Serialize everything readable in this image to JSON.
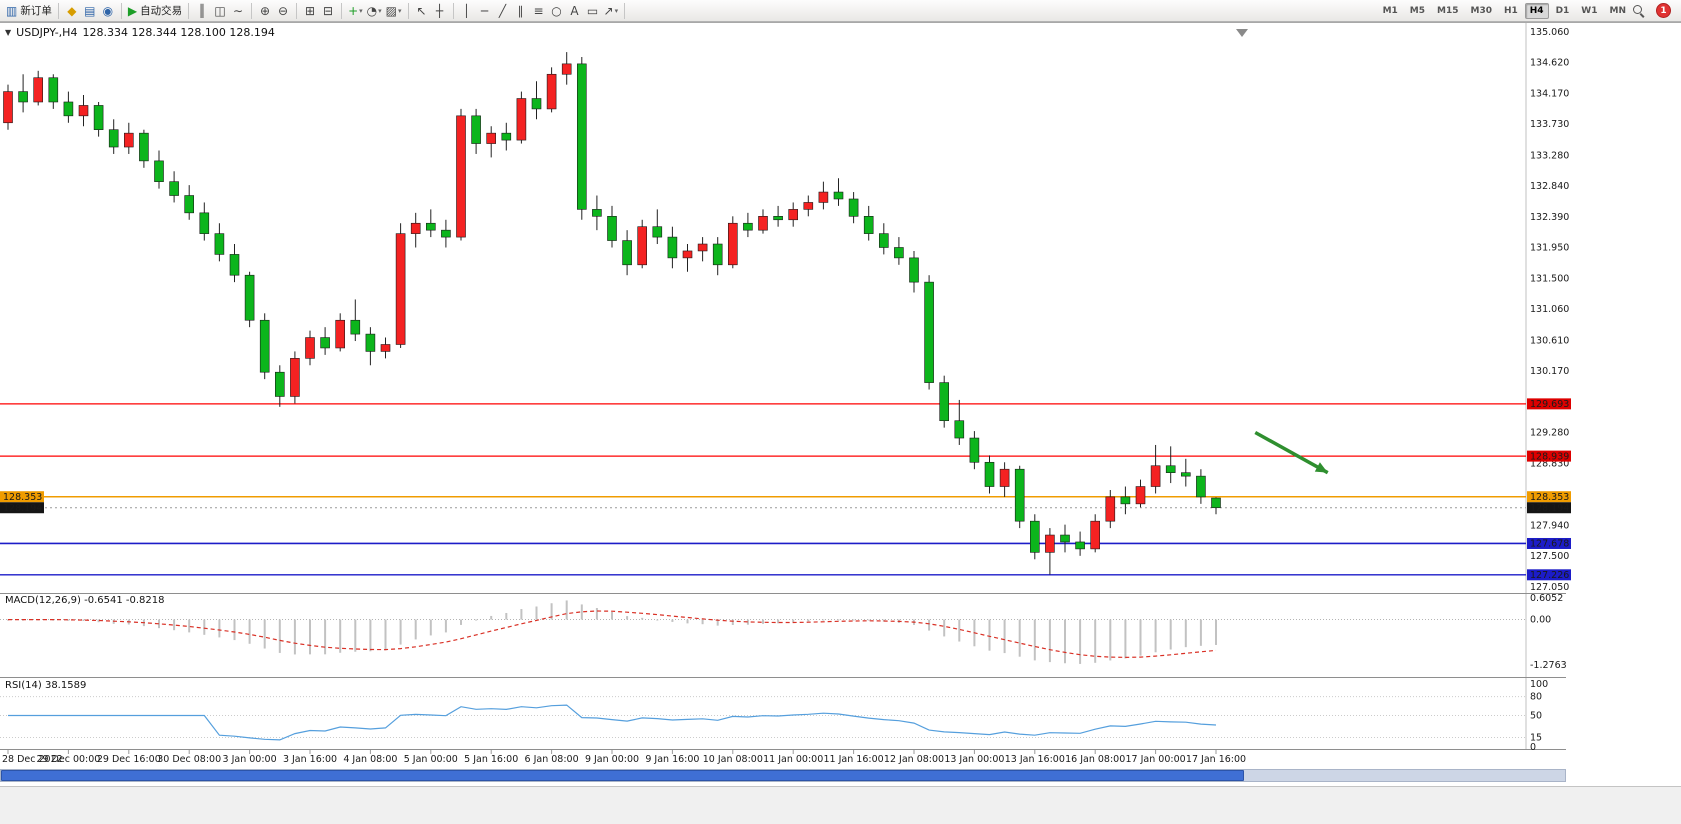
{
  "toolbar": {
    "new_order": {
      "label": "新订单"
    },
    "autotrading": {
      "label": "自动交易"
    },
    "icon_groups": [
      {
        "items": [
          {
            "name": "new-order-icon",
            "glyph": "▥",
            "color": "#2e64a8",
            "label": "新订单"
          }
        ]
      },
      {
        "items": [
          {
            "name": "price-list-icon",
            "glyph": "◆",
            "color": "#d79d00"
          },
          {
            "name": "market-watch-icon",
            "glyph": "▤",
            "color": "#2e64a8"
          },
          {
            "name": "refresh-icon",
            "glyph": "◉",
            "color": "#2e64a8"
          }
        ]
      },
      {
        "items": [
          {
            "name": "autotrading-play-icon",
            "glyph": "▶",
            "color": "#1d9e27",
            "label": "自动交易"
          }
        ]
      },
      {
        "items": [
          {
            "name": "bar-chart-icon",
            "glyph": "║",
            "color": "#444444"
          },
          {
            "name": "candlestick-chart-icon",
            "glyph": "◫",
            "color": "#444444"
          },
          {
            "name": "line-chart-icon",
            "glyph": "∼",
            "color": "#444444"
          }
        ]
      },
      {
        "items": [
          {
            "name": "zoom-in-icon",
            "glyph": "⊕",
            "color": "#444444"
          },
          {
            "name": "zoom-out-icon",
            "glyph": "⊖",
            "color": "#444444"
          }
        ]
      },
      {
        "items": [
          {
            "name": "tile-windows-icon",
            "glyph": "⊞",
            "color": "#444444"
          },
          {
            "name": "cascade-windows-icon",
            "glyph": "⊟",
            "color": "#444444"
          }
        ]
      },
      {
        "items": [
          {
            "name": "indicators-icon",
            "glyph": "+",
            "color": "#1d9e27",
            "dropdown": true
          },
          {
            "name": "periods-icon",
            "glyph": "◔",
            "color": "#444444",
            "dropdown": true
          },
          {
            "name": "templates-icon",
            "glyph": "▨",
            "color": "#444444",
            "dropdown": true
          }
        ]
      },
      {
        "items": [
          {
            "name": "cursor-icon",
            "glyph": "↖",
            "color": "#444444"
          },
          {
            "name": "crosshair-icon",
            "glyph": "┼",
            "color": "#444444"
          }
        ]
      },
      {
        "items": [
          {
            "name": "vertical-line-icon",
            "glyph": "│",
            "color": "#444444"
          },
          {
            "name": "horizontal-line-icon",
            "glyph": "─",
            "color": "#444444"
          },
          {
            "name": "trendline-icon",
            "glyph": "╱",
            "color": "#444444"
          },
          {
            "name": "channel-icon",
            "glyph": "∥",
            "color": "#444444"
          },
          {
            "name": "fibonacci-icon",
            "glyph": "≡",
            "color": "#444444"
          },
          {
            "name": "shapes-icon",
            "glyph": "○",
            "color": "#444444"
          },
          {
            "name": "text-icon",
            "glyph": "A",
            "color": "#444444"
          },
          {
            "name": "text-label-icon",
            "glyph": "▭",
            "color": "#444444"
          },
          {
            "name": "arrows-tool-icon",
            "glyph": "↗",
            "color": "#444444",
            "dropdown": true
          }
        ]
      }
    ],
    "timeframes": {
      "options": [
        "M1",
        "M5",
        "M15",
        "M30",
        "H1",
        "H4",
        "D1",
        "W1",
        "MN"
      ],
      "active": "H4"
    },
    "notification": {
      "count": "1"
    }
  },
  "chart_header": {
    "collapse_glyph": "▼",
    "symbol_period": "USDJPY-,H4",
    "ohlc": "128.334 128.344 128.100 128.194"
  },
  "indicator_labels": {
    "macd": "MACD(12,26,9) -0.6541 -0.8218",
    "rsi": "RSI(14) 38.1589"
  },
  "chart_data": {
    "type": "candlestick",
    "symbol": "USDJPY-",
    "timeframe": "H4",
    "ohlc_header": {
      "open": 128.334,
      "high": 128.344,
      "low": 128.1,
      "close": 128.194
    },
    "price_range": [
      127.05,
      135.06
    ],
    "price_axis_labels": [
      "135.060",
      "134.620",
      "134.170",
      "133.730",
      "133.280",
      "132.840",
      "132.390",
      "131.950",
      "131.500",
      "131.060",
      "130.610",
      "130.170",
      "129.280",
      "128.830",
      "127.940",
      "127.500",
      "127.050"
    ],
    "bull_color": "#f42222",
    "bear_color": "#0cb51c",
    "candles": [
      [
        133.75,
        134.3,
        133.65,
        134.2
      ],
      [
        134.2,
        134.45,
        133.9,
        134.05
      ],
      [
        134.05,
        134.5,
        134.0,
        134.4
      ],
      [
        134.4,
        134.45,
        133.95,
        134.05
      ],
      [
        134.05,
        134.2,
        133.75,
        133.85
      ],
      [
        133.85,
        134.15,
        133.7,
        134.0
      ],
      [
        134.0,
        134.05,
        133.55,
        133.65
      ],
      [
        133.65,
        133.8,
        133.3,
        133.4
      ],
      [
        133.4,
        133.75,
        133.3,
        133.6
      ],
      [
        133.6,
        133.65,
        133.1,
        133.2
      ],
      [
        133.2,
        133.35,
        132.8,
        132.9
      ],
      [
        132.9,
        133.05,
        132.6,
        132.7
      ],
      [
        132.7,
        132.85,
        132.35,
        132.45
      ],
      [
        132.45,
        132.6,
        132.05,
        132.15
      ],
      [
        132.15,
        132.3,
        131.75,
        131.85
      ],
      [
        131.85,
        132.0,
        131.45,
        131.55
      ],
      [
        131.55,
        131.6,
        130.8,
        130.9
      ],
      [
        130.9,
        131.0,
        130.05,
        130.15
      ],
      [
        130.15,
        130.25,
        129.65,
        129.8
      ],
      [
        129.8,
        130.45,
        129.7,
        130.35
      ],
      [
        130.35,
        130.75,
        130.25,
        130.65
      ],
      [
        130.65,
        130.8,
        130.4,
        130.5
      ],
      [
        130.5,
        131.0,
        130.45,
        130.9
      ],
      [
        130.9,
        131.2,
        130.6,
        130.7
      ],
      [
        130.7,
        130.8,
        130.25,
        130.45
      ],
      [
        130.45,
        130.65,
        130.35,
        130.55
      ],
      [
        130.55,
        132.3,
        130.5,
        132.15
      ],
      [
        132.15,
        132.45,
        131.95,
        132.3
      ],
      [
        132.3,
        132.5,
        132.1,
        132.2
      ],
      [
        132.2,
        132.35,
        131.95,
        132.1
      ],
      [
        132.1,
        133.95,
        132.05,
        133.85
      ],
      [
        133.85,
        133.95,
        133.3,
        133.45
      ],
      [
        133.45,
        133.7,
        133.25,
        133.6
      ],
      [
        133.6,
        133.75,
        133.35,
        133.5
      ],
      [
        133.5,
        134.2,
        133.45,
        134.1
      ],
      [
        134.1,
        134.35,
        133.8,
        133.95
      ],
      [
        133.95,
        134.55,
        133.9,
        134.45
      ],
      [
        134.45,
        134.77,
        134.3,
        134.6
      ],
      [
        134.6,
        134.7,
        132.35,
        132.5
      ],
      [
        132.5,
        132.7,
        132.2,
        132.4
      ],
      [
        132.4,
        132.55,
        131.95,
        132.05
      ],
      [
        132.05,
        132.2,
        131.55,
        131.7
      ],
      [
        131.7,
        132.35,
        131.65,
        132.25
      ],
      [
        132.25,
        132.5,
        132.0,
        132.1
      ],
      [
        132.1,
        132.25,
        131.65,
        131.8
      ],
      [
        131.8,
        132.0,
        131.6,
        131.9
      ],
      [
        131.9,
        132.1,
        131.75,
        132.0
      ],
      [
        132.0,
        132.1,
        131.55,
        131.7
      ],
      [
        131.7,
        132.4,
        131.65,
        132.3
      ],
      [
        132.3,
        132.45,
        132.1,
        132.2
      ],
      [
        132.2,
        132.5,
        132.15,
        132.4
      ],
      [
        132.4,
        132.55,
        132.25,
        132.35
      ],
      [
        132.35,
        132.6,
        132.25,
        132.5
      ],
      [
        132.5,
        132.7,
        132.4,
        132.6
      ],
      [
        132.6,
        132.9,
        132.5,
        132.75
      ],
      [
        132.75,
        132.95,
        132.55,
        132.65
      ],
      [
        132.65,
        132.75,
        132.3,
        132.4
      ],
      [
        132.4,
        132.55,
        132.05,
        132.15
      ],
      [
        132.15,
        132.3,
        131.85,
        131.95
      ],
      [
        131.95,
        132.1,
        131.7,
        131.8
      ],
      [
        131.8,
        131.9,
        131.3,
        131.45
      ],
      [
        131.45,
        131.55,
        129.9,
        130.0
      ],
      [
        130.0,
        130.1,
        129.35,
        129.45
      ],
      [
        129.45,
        129.75,
        129.1,
        129.2
      ],
      [
        129.2,
        129.3,
        128.75,
        128.85
      ],
      [
        128.85,
        128.95,
        128.4,
        128.5
      ],
      [
        128.5,
        128.85,
        128.35,
        128.75
      ],
      [
        128.75,
        128.8,
        127.9,
        128.0
      ],
      [
        128.0,
        128.1,
        127.45,
        127.55
      ],
      [
        127.55,
        127.9,
        127.23,
        127.8
      ],
      [
        127.8,
        127.95,
        127.55,
        127.7
      ],
      [
        127.7,
        127.85,
        127.5,
        127.6
      ],
      [
        127.6,
        128.1,
        127.55,
        128.0
      ],
      [
        128.0,
        128.45,
        127.9,
        128.35
      ],
      [
        128.35,
        128.5,
        128.1,
        128.25
      ],
      [
        128.25,
        128.6,
        128.2,
        128.5
      ],
      [
        128.5,
        129.1,
        128.4,
        128.8
      ],
      [
        128.8,
        129.08,
        128.55,
        128.7
      ],
      [
        128.7,
        128.9,
        128.5,
        128.65
      ],
      [
        128.65,
        128.75,
        128.25,
        128.35
      ],
      [
        128.334,
        128.344,
        128.1,
        128.194
      ]
    ],
    "time_label_step": 4,
    "time_labels": [
      "28 Dec 2022",
      "29 Dec 00:00",
      "29 Dec 16:00",
      "30 Dec 08:00",
      "3 Jan 00:00",
      "3 Jan 16:00",
      "4 Jan 08:00",
      "5 Jan 00:00",
      "5 Jan 16:00",
      "6 Jan 08:00",
      "9 Jan 00:00",
      "9 Jan 16:00",
      "10 Jan 08:00",
      "11 Jan 00:00",
      "11 Jan 16:00",
      "12 Jan 08:00",
      "13 Jan 00:00",
      "13 Jan 16:00",
      "16 Jan 08:00",
      "17 Jan 00:00",
      "17 Jan 16:00"
    ],
    "hlines": [
      {
        "price": 129.693,
        "label": "129.693",
        "color": "#ff0000",
        "badge_bg": "#dd0000",
        "width": 1.2,
        "left_badge": false
      },
      {
        "price": 128.939,
        "label": "128.939",
        "color": "#ff0000",
        "badge_bg": "#dd0000",
        "width": 1.2,
        "left_badge": false
      },
      {
        "price": 128.353,
        "label": "128.353",
        "color": "#f09c00",
        "badge_bg": "#f09c00",
        "width": 1.5,
        "left_badge": true
      },
      {
        "price": 127.678,
        "label": "127.678",
        "color": "#1c1cc8",
        "badge_bg": "#1c1cc8",
        "width": 1.6,
        "left_badge": false
      },
      {
        "price": 127.226,
        "label": "127.226",
        "color": "#1c1cc8",
        "badge_bg": "#1c1cc8",
        "width": 1.4,
        "left_badge": false
      }
    ],
    "current_price": {
      "value": 128.194,
      "label": "128.194",
      "badge_bg": "#151515",
      "left_badge": true
    },
    "macd": {
      "name": "MACD",
      "params": [
        12,
        26,
        9
      ],
      "value_main": -0.6541,
      "value_signal": -0.8218,
      "scale_labels": [
        "0.6052",
        "0.00",
        "-1.2763"
      ],
      "scale_range": [
        -1.2763,
        0.6052
      ],
      "hist_color": "#c2c2c2",
      "signal_color": "#d93025"
    },
    "rsi": {
      "name": "RSI",
      "period": 14,
      "value": 38.1589,
      "scale_labels": [
        {
          "v": 100,
          "t": "100"
        },
        {
          "v": 80,
          "t": "80"
        },
        {
          "v": 50,
          "t": "50"
        },
        {
          "v": 15,
          "t": "15"
        },
        {
          "v": 0,
          "t": "0"
        }
      ],
      "levels": [
        80,
        50,
        15
      ],
      "line_color": "#559fdd"
    },
    "annotation_arrow": {
      "from_index": 82.6,
      "from_price": 129.28,
      "to_index": 87.4,
      "to_price": 128.7,
      "color": "#2f8f2f"
    }
  }
}
